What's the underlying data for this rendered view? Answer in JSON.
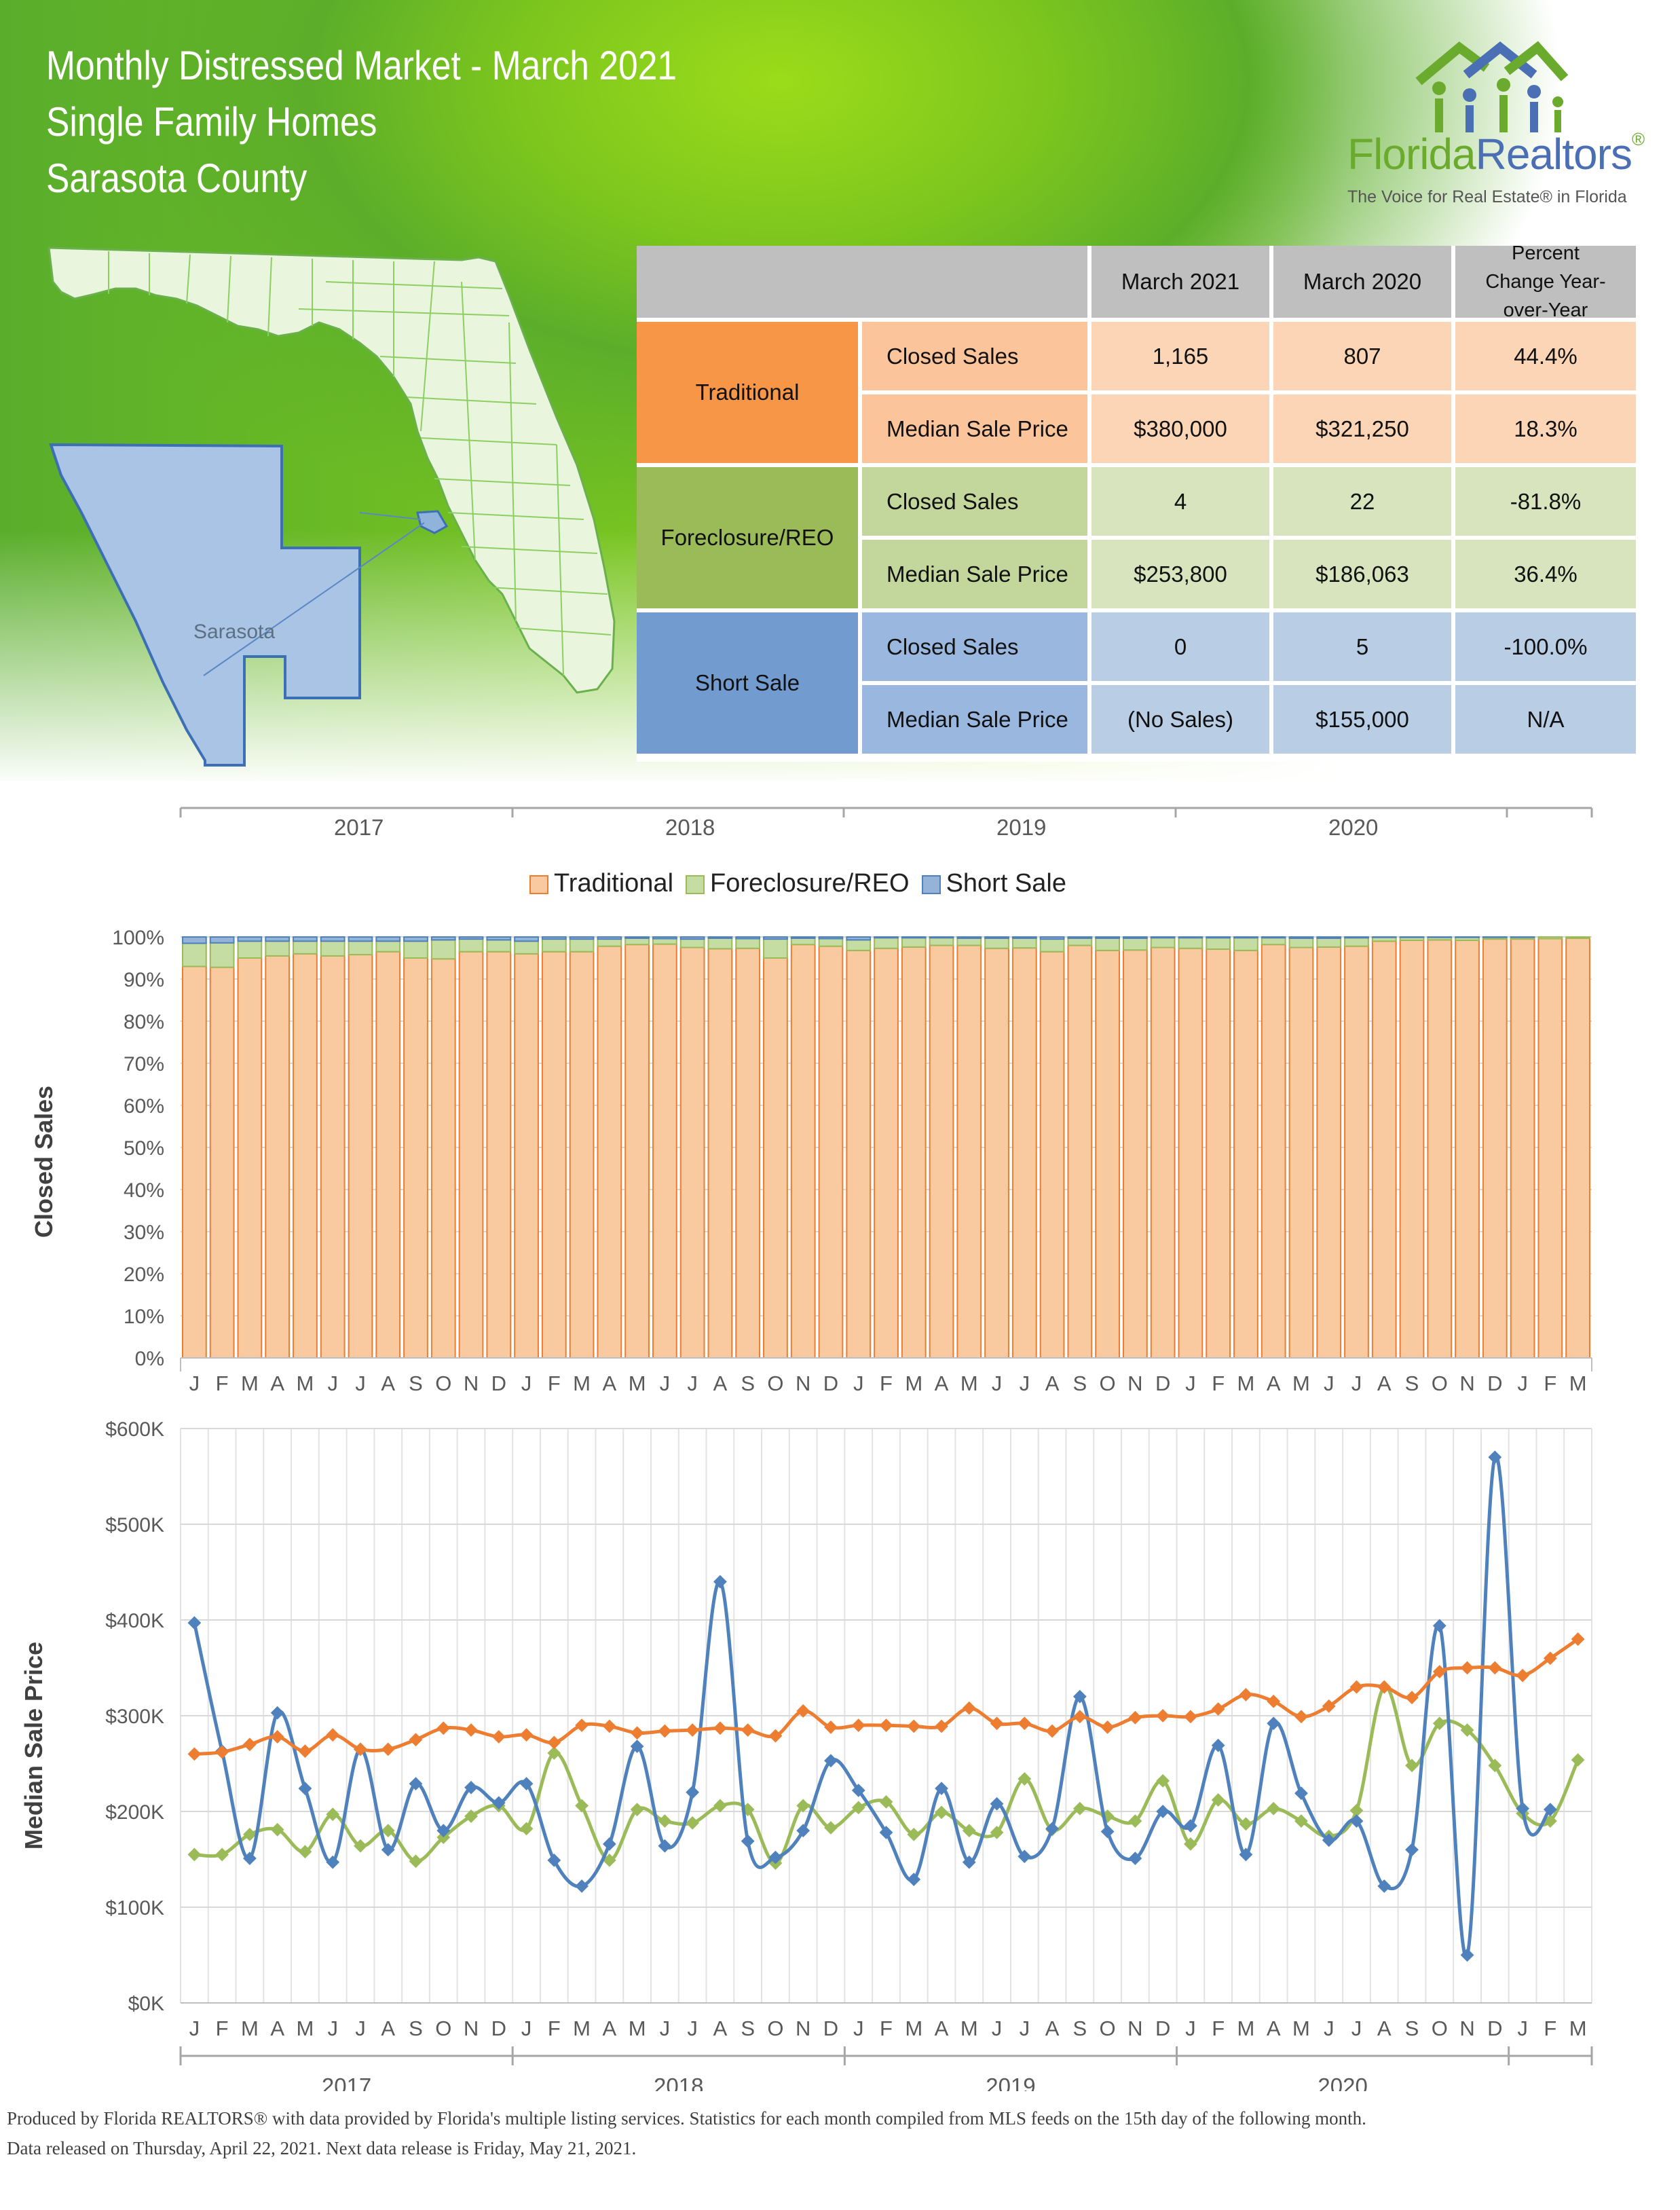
{
  "header": {
    "title_lines": [
      "Monthly Distressed Market - March 2021",
      "Single Family Homes",
      "Sarasota County"
    ]
  },
  "logo": {
    "name_part1": "Florida",
    "name_part2": "Realtors",
    "mark": "®",
    "tagline": "The Voice for Real Estate® in Florida",
    "icon": "houses-people-icon"
  },
  "map": {
    "county_label": "Sarasota",
    "icon": "florida-map"
  },
  "table": {
    "columns": [
      "March 2021",
      "March 2020",
      "Percent Change Year-over-Year"
    ],
    "groups": [
      {
        "name": "Traditional",
        "color": "#f79646",
        "row_color": "#fbd5b5",
        "rows": [
          {
            "label": "Closed Sales",
            "values": [
              "1,165",
              "807",
              "44.4%"
            ]
          },
          {
            "label": "Median Sale Price",
            "values": [
              "$380,000",
              "$321,250",
              "18.3%"
            ]
          }
        ]
      },
      {
        "name": "Foreclosure/REO",
        "color": "#9bbb59",
        "row_color": "#d7e4bd",
        "rows": [
          {
            "label": "Closed Sales",
            "values": [
              "4",
              "22",
              "-81.8%"
            ]
          },
          {
            "label": "Median Sale Price",
            "values": [
              "$253,800",
              "$186,063",
              "36.4%"
            ]
          }
        ]
      },
      {
        "name": "Short Sale",
        "color": "#729bcf",
        "row_color": "#b9cde5",
        "rows": [
          {
            "label": "Closed Sales",
            "values": [
              "0",
              "5",
              "-100.0%"
            ]
          },
          {
            "label": "Median Sale Price",
            "values": [
              "(No Sales)",
              "$155,000",
              "N/A"
            ]
          }
        ]
      }
    ]
  },
  "years": [
    "2017",
    "2018",
    "2019",
    "2020"
  ],
  "legend": [
    "Traditional",
    "Foreclosure/REO",
    "Short Sale"
  ],
  "colors": {
    "traditional": "#ed7d31",
    "traditional_fill": "#f9c9a0",
    "foreclosure": "#9bbb59",
    "foreclosure_fill": "#c5dca2",
    "short": "#4f81bd",
    "short_fill": "#95b3d7"
  },
  "chart_data": [
    {
      "type": "bar",
      "stacked": true,
      "ylabel": "Closed Sales",
      "ylim": [
        0,
        100
      ],
      "yticks": [
        "0%",
        "10%",
        "20%",
        "30%",
        "40%",
        "50%",
        "60%",
        "70%",
        "80%",
        "90%",
        "100%"
      ],
      "categories": [
        "J",
        "F",
        "M",
        "A",
        "M",
        "J",
        "J",
        "A",
        "S",
        "O",
        "N",
        "D",
        "J",
        "F",
        "M",
        "A",
        "M",
        "J",
        "J",
        "A",
        "S",
        "O",
        "N",
        "D",
        "J",
        "F",
        "M",
        "A",
        "M",
        "J",
        "J",
        "A",
        "S",
        "O",
        "N",
        "D",
        "J",
        "F",
        "M",
        "A",
        "M",
        "J",
        "J",
        "A",
        "S",
        "O",
        "N",
        "D",
        "J",
        "F",
        "M"
      ],
      "series": [
        {
          "name": "Traditional",
          "values": [
            93,
            92.8,
            95,
            95.5,
            96,
            95.5,
            95.8,
            96.5,
            95,
            94.8,
            96.5,
            96.5,
            96,
            96.5,
            96.5,
            97.8,
            98.2,
            98.3,
            97.5,
            97.2,
            97.3,
            95,
            98.2,
            97.8,
            96.8,
            97.3,
            97.6,
            98,
            98,
            97.3,
            97.4,
            96.5,
            98,
            96.8,
            96.9,
            97.5,
            97.3,
            97.1,
            96.8,
            98.2,
            97.5,
            97.6,
            97.8,
            99,
            99.2,
            99.3,
            99.2,
            99.5,
            99.5,
            99.6,
            99.7
          ]
        },
        {
          "name": "Foreclosure/REO",
          "values": [
            5.5,
            5.8,
            4,
            3.5,
            3,
            3.5,
            3.2,
            2.5,
            4,
            4.5,
            3,
            2.8,
            3,
            3,
            3,
            1.7,
            1.5,
            1.3,
            2,
            2.5,
            2.3,
            4.5,
            1.5,
            1.8,
            2.5,
            2.5,
            2.2,
            1.8,
            1.7,
            2.4,
            2.3,
            3,
            1.7,
            2.9,
            2.8,
            2.3,
            2.5,
            2.7,
            3,
            1.6,
            2.2,
            2.1,
            2,
            0.9,
            0.7,
            0.6,
            0.7,
            0.4,
            0.4,
            0.4,
            0.3
          ]
        },
        {
          "name": "Short Sale",
          "values": [
            1.5,
            1.4,
            1,
            1,
            1,
            1,
            1,
            1,
            1,
            0.7,
            0.5,
            0.7,
            1,
            0.5,
            0.5,
            0.5,
            0.3,
            0.4,
            0.5,
            0.3,
            0.4,
            0.5,
            0.3,
            0.4,
            0.7,
            0.2,
            0.2,
            0.2,
            0.3,
            0.3,
            0.3,
            0.5,
            0.3,
            0.3,
            0.3,
            0.2,
            0.2,
            0.2,
            0.2,
            0.2,
            0.3,
            0.3,
            0.2,
            0.1,
            0.1,
            0.1,
            0.1,
            0.1,
            0.1,
            0,
            0
          ]
        }
      ]
    },
    {
      "type": "line",
      "ylabel": "Median Sale Price",
      "ylim": [
        0,
        600000
      ],
      "yticks": [
        "$0K",
        "$100K",
        "$200K",
        "$300K",
        "$400K",
        "$500K",
        "$600K"
      ],
      "categories": [
        "J",
        "F",
        "M",
        "A",
        "M",
        "J",
        "J",
        "A",
        "S",
        "O",
        "N",
        "D",
        "J",
        "F",
        "M",
        "A",
        "M",
        "J",
        "J",
        "A",
        "S",
        "O",
        "N",
        "D",
        "J",
        "F",
        "M",
        "A",
        "M",
        "J",
        "J",
        "A",
        "S",
        "O",
        "N",
        "D",
        "J",
        "F",
        "M",
        "A",
        "M",
        "J",
        "J",
        "A",
        "S",
        "O",
        "N",
        "D",
        "J",
        "F",
        "M"
      ],
      "series": [
        {
          "name": "Traditional",
          "values": [
            260000,
            262000,
            270000,
            278000,
            263000,
            280000,
            265000,
            265000,
            275000,
            287000,
            285000,
            278000,
            280000,
            272000,
            290000,
            289000,
            282000,
            284000,
            285000,
            287000,
            285000,
            279000,
            305000,
            288000,
            290000,
            290000,
            289000,
            289000,
            308000,
            292000,
            292000,
            284000,
            299000,
            288000,
            298000,
            300000,
            299000,
            307000,
            322000,
            315000,
            299000,
            310000,
            330000,
            330000,
            319000,
            346000,
            350000,
            350000,
            342000,
            360000,
            380000
          ]
        },
        {
          "name": "Foreclosure/REO",
          "values": [
            155000,
            155000,
            176000,
            181000,
            158000,
            197000,
            164000,
            180000,
            148000,
            173000,
            195000,
            206000,
            182000,
            261000,
            206000,
            149000,
            202000,
            190000,
            188000,
            206000,
            202000,
            146000,
            206000,
            183000,
            204000,
            210000,
            176000,
            199000,
            180000,
            178000,
            234000,
            181000,
            203000,
            195000,
            190000,
            232000,
            166000,
            212000,
            187000,
            203000,
            190000,
            174000,
            201000,
            330000,
            248000,
            292000,
            285000,
            248000,
            198000,
            190000,
            253800
          ]
        },
        {
          "name": "Short Sale",
          "values": [
            397000,
            263000,
            151000,
            303000,
            224000,
            147000,
            265000,
            160000,
            229000,
            180000,
            225000,
            209000,
            229000,
            149000,
            122000,
            166000,
            268000,
            164000,
            220000,
            440000,
            169000,
            152000,
            180000,
            253000,
            222000,
            178000,
            129000,
            224000,
            147000,
            208000,
            153000,
            182000,
            320000,
            179000,
            151000,
            200000,
            185000,
            269000,
            155000,
            292000,
            219000,
            170000,
            190000,
            122000,
            160000,
            394000,
            50000,
            570000,
            203000,
            202000,
            null
          ]
        }
      ]
    }
  ]
}
